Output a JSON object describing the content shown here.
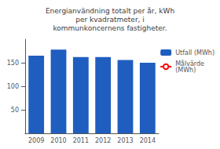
{
  "chart_data": {
    "type": "bar",
    "title": "Energianvändning totalt per år, kWh\nper kvadratmeter, i\nkommunkoncernens fastigheter.",
    "categories": [
      "2009",
      "2010",
      "2011",
      "2012",
      "2013",
      "2014"
    ],
    "series": [
      {
        "name": "Utfall (MWh)",
        "type": "bar",
        "color": "#1F5EBF",
        "values": [
          165,
          178,
          162,
          162,
          156,
          150
        ]
      },
      {
        "name": "Målvärde\n(MWh)",
        "type": "line",
        "color": "red",
        "values": [
          null,
          null,
          null,
          null,
          null,
          null
        ]
      }
    ],
    "ylim": [
      0,
      200
    ],
    "yticks": [
      50,
      100,
      150
    ],
    "grid": false,
    "legend": "right"
  }
}
